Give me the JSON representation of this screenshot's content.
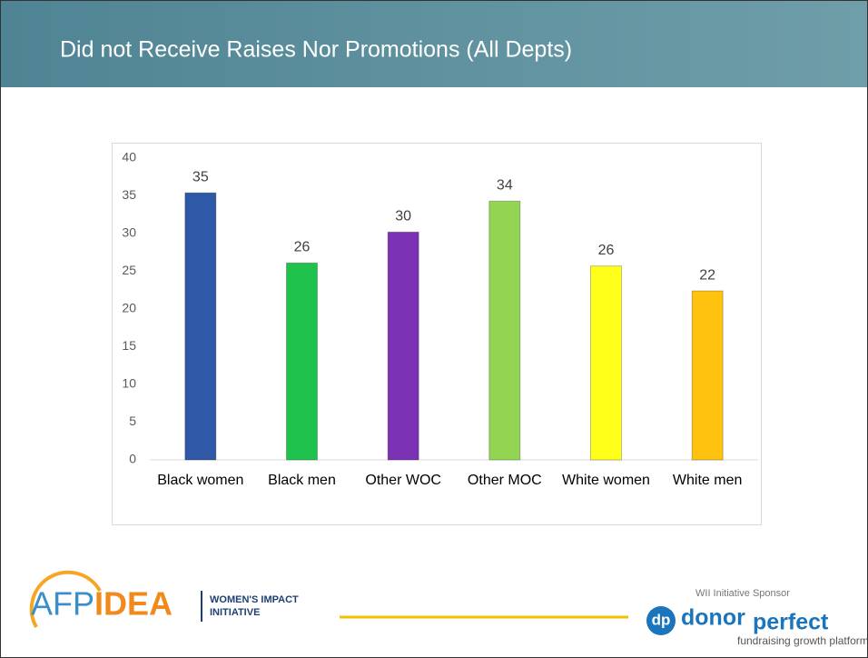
{
  "chart_data": {
    "type": "bar",
    "title": "Did not Receive Raises Nor Promotions (All Depts)",
    "categories": [
      "Black women",
      "Black men",
      "Other WOC",
      "Other MOC",
      "White women",
      "White men"
    ],
    "values": [
      35.4,
      26.1,
      30.2,
      34.3,
      25.7,
      22.4
    ],
    "value_labels": [
      "35",
      "26",
      "30",
      "34",
      "26",
      "22"
    ],
    "colors": [
      "#2f58a6",
      "#1fc24c",
      "#7b32b4",
      "#93d452",
      "#ffff1a",
      "#ffc20e"
    ],
    "ylim": [
      0,
      40
    ],
    "yticks": [
      0,
      5,
      10,
      15,
      20,
      25,
      30,
      35,
      40
    ],
    "grid": false
  },
  "footer": {
    "afp": "AFP",
    "idea": "IDEA",
    "wii_line1": "WOMEN'S IMPACT",
    "wii_line2": "INITIATIVE",
    "sponsor": "WII Initiative Sponsor",
    "dp": "dp",
    "donor": "donor",
    "perfect": "perfect",
    "tagline": "fundraising growth platform"
  }
}
